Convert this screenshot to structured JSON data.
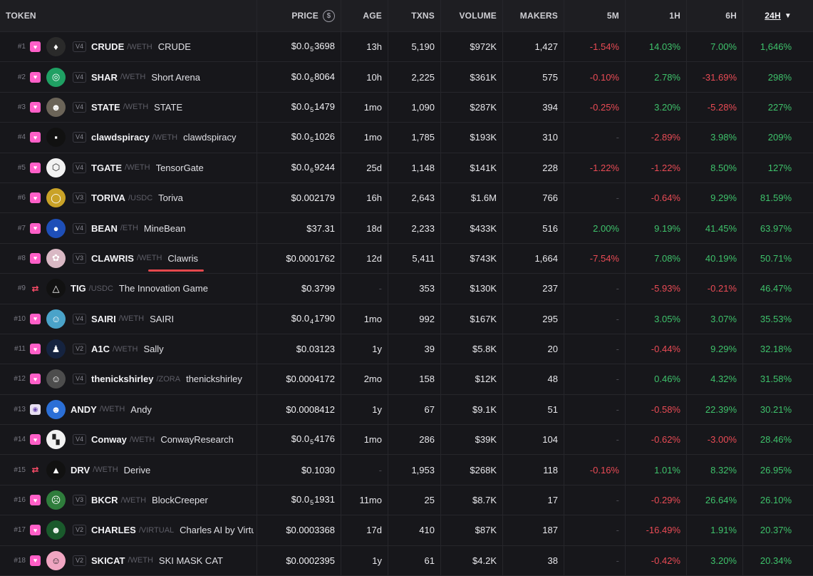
{
  "columns": {
    "token": "TOKEN",
    "price": "PRICE",
    "age": "AGE",
    "txns": "TXNS",
    "volume": "VOLUME",
    "makers": "MAKERS",
    "m5": "5M",
    "h1": "1H",
    "h6": "6H",
    "h24": "24H"
  },
  "colors": {
    "positive": "#3ec26b",
    "negative": "#ea4b55",
    "accent": "#e5484d"
  },
  "rows": [
    {
      "rank": "#1",
      "chain": "uniswap-icon",
      "version": "V4",
      "symbol": "CRUDE",
      "quote": "/WETH",
      "name": "CRUDE",
      "price": {
        "prefix": "$0.0",
        "sub": "5",
        "digits": "3698"
      },
      "age": "13h",
      "txns": "5,190",
      "volume": "$972K",
      "makers": "1,427",
      "m5": "-1.54%",
      "h1": "14.03%",
      "h6": "7.00%",
      "h24": "1,646%",
      "avatar": "#2a2a2a",
      "avatar_glyph": "♦"
    },
    {
      "rank": "#2",
      "chain": "uniswap-icon",
      "version": "V4",
      "symbol": "SHAR",
      "quote": "/WETH",
      "name": "Short Arena",
      "price": {
        "prefix": "$0.0",
        "sub": "6",
        "digits": "8064"
      },
      "age": "10h",
      "txns": "2,225",
      "volume": "$361K",
      "makers": "575",
      "m5": "-0.10%",
      "h1": "2.78%",
      "h6": "-31.69%",
      "h24": "298%",
      "avatar": "#1fa063",
      "avatar_glyph": "◎"
    },
    {
      "rank": "#3",
      "chain": "uniswap-icon",
      "version": "V4",
      "symbol": "STATE",
      "quote": "/WETH",
      "name": "STATE",
      "price": {
        "prefix": "$0.0",
        "sub": "5",
        "digits": "1479"
      },
      "age": "1mo",
      "txns": "1,090",
      "volume": "$287K",
      "makers": "394",
      "m5": "-0.25%",
      "h1": "3.20%",
      "h6": "-5.28%",
      "h24": "227%",
      "avatar": "#6b6458",
      "avatar_glyph": "☻"
    },
    {
      "rank": "#4",
      "chain": "uniswap-icon",
      "version": "V4",
      "symbol": "clawdspiracy",
      "quote": "/WETH",
      "name": "clawdspiracy",
      "price": {
        "prefix": "$0.0",
        "sub": "5",
        "digits": "1026"
      },
      "age": "1mo",
      "txns": "1,785",
      "volume": "$193K",
      "makers": "310",
      "m5": "-",
      "h1": "-2.89%",
      "h6": "3.98%",
      "h24": "209%",
      "avatar": "#111111",
      "avatar_glyph": "▪"
    },
    {
      "rank": "#5",
      "chain": "uniswap-icon",
      "version": "V4",
      "symbol": "TGATE",
      "quote": "/WETH",
      "name": "TensorGate",
      "price": {
        "prefix": "$0.0",
        "sub": "6",
        "digits": "9244"
      },
      "age": "25d",
      "txns": "1,148",
      "volume": "$141K",
      "makers": "228",
      "m5": "-1.22%",
      "h1": "-1.22%",
      "h6": "8.50%",
      "h24": "127%",
      "avatar": "#f2f2f2",
      "avatar_glyph": "⬡"
    },
    {
      "rank": "#6",
      "chain": "uniswap-icon",
      "version": "V3",
      "symbol": "TORIVA",
      "quote": "/USDC",
      "name": "Toriva",
      "price": {
        "prefix": "$0.002179",
        "sub": "",
        "digits": ""
      },
      "age": "16h",
      "txns": "2,643",
      "volume": "$1.6M",
      "makers": "766",
      "m5": "-",
      "h1": "-0.64%",
      "h6": "9.29%",
      "h24": "81.59%",
      "avatar": "#c9a227",
      "avatar_glyph": "◯"
    },
    {
      "rank": "#7",
      "chain": "uniswap-icon",
      "version": "V4",
      "symbol": "BEAN",
      "quote": "/ETH",
      "name": "MineBean",
      "price": {
        "prefix": "$37.31",
        "sub": "",
        "digits": ""
      },
      "age": "18d",
      "txns": "2,233",
      "volume": "$433K",
      "makers": "516",
      "m5": "2.00%",
      "h1": "9.19%",
      "h6": "41.45%",
      "h24": "63.97%",
      "avatar": "#1e4fb8",
      "avatar_glyph": "●"
    },
    {
      "rank": "#8",
      "chain": "uniswap-icon",
      "version": "V3",
      "symbol": "CLAWRIS",
      "quote": "/WETH",
      "name": "Clawris",
      "price": {
        "prefix": "$0.0001762",
        "sub": "",
        "digits": ""
      },
      "age": "12d",
      "txns": "5,411",
      "volume": "$743K",
      "makers": "1,664",
      "m5": "-7.54%",
      "h1": "7.08%",
      "h6": "40.19%",
      "h24": "50.71%",
      "avatar": "#d9b8c4",
      "avatar_glyph": "✿"
    },
    {
      "rank": "#9",
      "chain": "swap-icon",
      "version": "",
      "symbol": "TIG",
      "quote": "/USDC",
      "name": "The Innovation Game",
      "price": {
        "prefix": "$0.3799",
        "sub": "",
        "digits": ""
      },
      "age": "-",
      "txns": "353",
      "volume": "$130K",
      "makers": "237",
      "m5": "-",
      "h1": "-5.93%",
      "h6": "-0.21%",
      "h24": "46.47%",
      "avatar": "#111111",
      "avatar_glyph": "△"
    },
    {
      "rank": "#10",
      "chain": "uniswap-icon",
      "version": "V4",
      "symbol": "SAIRI",
      "quote": "/WETH",
      "name": "SAIRI",
      "price": {
        "prefix": "$0.0",
        "sub": "4",
        "digits": "1790"
      },
      "age": "1mo",
      "txns": "992",
      "volume": "$167K",
      "makers": "295",
      "m5": "-",
      "h1": "3.05%",
      "h6": "3.07%",
      "h24": "35.53%",
      "avatar": "#4aa3c9",
      "avatar_glyph": "☺"
    },
    {
      "rank": "#11",
      "chain": "uniswap-icon",
      "version": "V2",
      "symbol": "A1C",
      "quote": "/WETH",
      "name": "Sally",
      "price": {
        "prefix": "$0.03123",
        "sub": "",
        "digits": ""
      },
      "age": "1y",
      "txns": "39",
      "volume": "$5.8K",
      "makers": "20",
      "m5": "-",
      "h1": "-0.44%",
      "h6": "9.29%",
      "h24": "32.18%",
      "avatar": "#15233f",
      "avatar_glyph": "♟"
    },
    {
      "rank": "#12",
      "chain": "uniswap-icon",
      "version": "V4",
      "symbol": "thenickshirley",
      "quote": "/ZORA",
      "name": "thenickshirley",
      "price": {
        "prefix": "$0.0004172",
        "sub": "",
        "digits": ""
      },
      "age": "2mo",
      "txns": "158",
      "volume": "$12K",
      "makers": "48",
      "m5": "-",
      "h1": "0.46%",
      "h6": "4.32%",
      "h24": "31.58%",
      "avatar": "#4d4d4d",
      "avatar_glyph": "☺"
    },
    {
      "rank": "#13",
      "chain": "frog-icon",
      "version": "",
      "symbol": "ANDY",
      "quote": "/WETH",
      "name": "Andy",
      "price": {
        "prefix": "$0.0008412",
        "sub": "",
        "digits": ""
      },
      "age": "1y",
      "txns": "67",
      "volume": "$9.1K",
      "makers": "51",
      "m5": "-",
      "h1": "-0.58%",
      "h6": "22.39%",
      "h24": "30.21%",
      "avatar": "#2b6fd6",
      "avatar_glyph": "☻"
    },
    {
      "rank": "#14",
      "chain": "uniswap-icon",
      "version": "V4",
      "symbol": "Conway",
      "quote": "/WETH",
      "name": "ConwayResearch",
      "price": {
        "prefix": "$0.0",
        "sub": "5",
        "digits": "4176"
      },
      "age": "1mo",
      "txns": "286",
      "volume": "$39K",
      "makers": "104",
      "m5": "-",
      "h1": "-0.62%",
      "h6": "-3.00%",
      "h24": "28.46%",
      "avatar": "#f2f2f2",
      "avatar_glyph": "▚"
    },
    {
      "rank": "#15",
      "chain": "swap-icon",
      "version": "",
      "symbol": "DRV",
      "quote": "/WETH",
      "name": "Derive",
      "price": {
        "prefix": "$0.1030",
        "sub": "",
        "digits": ""
      },
      "age": "-",
      "txns": "1,953",
      "volume": "$268K",
      "makers": "118",
      "m5": "-0.16%",
      "h1": "1.01%",
      "h6": "8.32%",
      "h24": "26.95%",
      "avatar": "#111111",
      "avatar_glyph": "▲"
    },
    {
      "rank": "#16",
      "chain": "uniswap-icon",
      "version": "V3",
      "symbol": "BKCR",
      "quote": "/WETH",
      "name": "BlockCreeper",
      "price": {
        "prefix": "$0.0",
        "sub": "5",
        "digits": "1931"
      },
      "age": "11mo",
      "txns": "25",
      "volume": "$8.7K",
      "makers": "17",
      "m5": "-",
      "h1": "-0.29%",
      "h6": "26.64%",
      "h24": "26.10%",
      "avatar": "#2f7d3c",
      "avatar_glyph": "☹"
    },
    {
      "rank": "#17",
      "chain": "uniswap-icon",
      "version": "V2",
      "symbol": "CHARLES",
      "quote": "/VIRTUAL",
      "name": "Charles AI by Virtu",
      "price": {
        "prefix": "$0.0003368",
        "sub": "",
        "digits": ""
      },
      "age": "17d",
      "txns": "410",
      "volume": "$87K",
      "makers": "187",
      "m5": "-",
      "h1": "-16.49%",
      "h6": "1.91%",
      "h24": "20.37%",
      "avatar": "#1a5a2c",
      "avatar_glyph": "☻"
    },
    {
      "rank": "#18",
      "chain": "uniswap-icon",
      "version": "V2",
      "symbol": "SKICAT",
      "quote": "/WETH",
      "name": "SKI MASK CAT",
      "price": {
        "prefix": "$0.0002395",
        "sub": "",
        "digits": ""
      },
      "age": "1y",
      "txns": "61",
      "volume": "$4.2K",
      "makers": "38",
      "m5": "-",
      "h1": "-0.42%",
      "h6": "3.20%",
      "h24": "20.34%",
      "avatar": "#f0a6c2",
      "avatar_glyph": "☺"
    }
  ]
}
